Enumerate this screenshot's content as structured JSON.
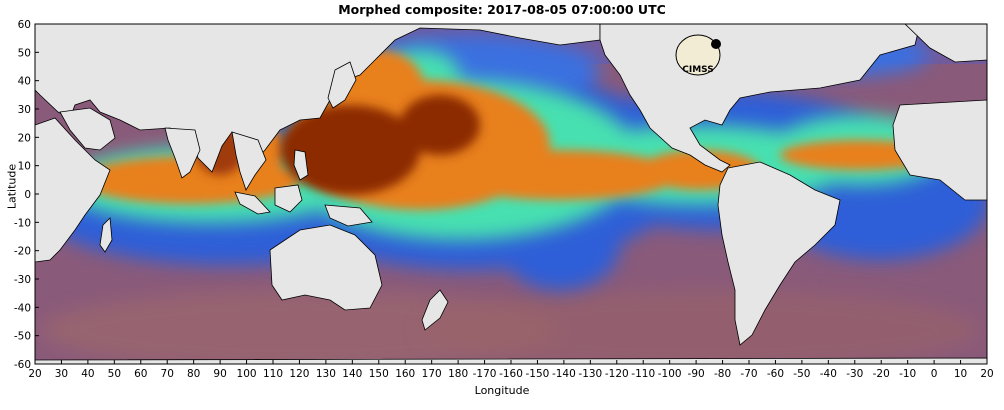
{
  "title": "Morphed composite: 2017-08-05 07:00:00 UTC",
  "axes": {
    "xlabel": "Longitude",
    "ylabel": "Latitude",
    "x_ticks": [
      "20",
      "30",
      "40",
      "50",
      "60",
      "70",
      "80",
      "90",
      "100",
      "110",
      "120",
      "130",
      "140",
      "150",
      "160",
      "170",
      "180",
      "-170",
      "-160",
      "-150",
      "-140",
      "-130",
      "-120",
      "-110",
      "-100",
      "-90",
      "-80",
      "-70",
      "-60",
      "-50",
      "-40",
      "-30",
      "-20",
      "-10",
      "0",
      "10",
      "20"
    ],
    "y_ticks": [
      "60",
      "50",
      "40",
      "30",
      "20",
      "10",
      "0",
      "-10",
      "-20",
      "-30",
      "-40",
      "-50",
      "-60"
    ],
    "lon_range": [
      20,
      380
    ],
    "lat_range": [
      -60,
      60
    ]
  },
  "colors": {
    "land": "#e6e6e6",
    "ocean_dry": "#8a5a7a",
    "moist_low": "#2f5fd8",
    "moist_mid": "#46e0b0",
    "moist_high": "#e8801a",
    "moist_max": "#8c2a05"
  },
  "logo": {
    "text": "CIMSS"
  }
}
